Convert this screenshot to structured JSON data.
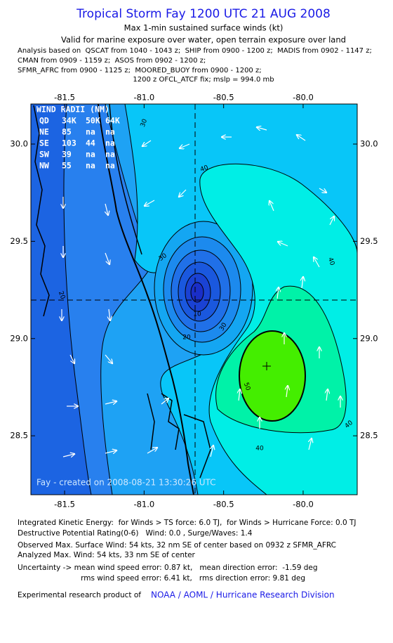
{
  "header": {
    "title": "Tropical Storm Fay 1200 UTC 21 AUG 2008",
    "subtitle": "Max 1-min sustained surface winds (kt)",
    "validity": "Valid for marine exposure over water, open terrain exposure over land",
    "sources": [
      "Analysis based on  QSCAT from 1040 - 1043 z;  SHIP from 0900 - 1200 z;  MADIS from 0902 - 1147 z;",
      "CMAN from 0909 - 1159 z;  ASOS from 0902 - 1200 z;",
      "SFMR_AFRC from 0900 - 1125 z;  MOORED_BUOY from 0900 - 1200 z;"
    ],
    "fix": "1200 z OFCL_ATCF fix; mslp = 994.0 mb"
  },
  "map": {
    "xlim": [
      -81.712,
      -79.66
    ],
    "ylim": [
      28.197,
      30.206
    ],
    "xticks": [
      {
        "value": -81.5,
        "label": "-81.5"
      },
      {
        "value": -81.0,
        "label": "-81.0"
      },
      {
        "value": -80.5,
        "label": "-80.5"
      },
      {
        "value": -80.0,
        "label": "-80.0"
      }
    ],
    "yticks": [
      {
        "value": 28.5,
        "label": "28.5"
      },
      {
        "value": 29.0,
        "label": "29.0"
      },
      {
        "value": 29.5,
        "label": "29.5"
      },
      {
        "value": 30.0,
        "label": "30.0"
      }
    ],
    "wind_radii": {
      "title": "WIND RADII (NM)",
      "header": [
        "QD",
        "34K",
        "50K",
        "64K"
      ],
      "rows": [
        [
          "NE",
          85,
          "na",
          "na"
        ],
        [
          "SE",
          103,
          44,
          "na"
        ],
        [
          "SW",
          39,
          "na",
          "na"
        ],
        [
          "NW",
          55,
          "na",
          "na"
        ]
      ]
    },
    "contour_labels": [
      30,
      40,
      30,
      10,
      20,
      30,
      20,
      40,
      50,
      40,
      40
    ],
    "credit": "Fay - created on 2008-08-21 13:30:26 UTC"
  },
  "footer": {
    "lines": [
      "Integrated Kinetic Energy:  for Winds > TS force: 6.0 TJ,  for Winds > Hurricane Force: 0.0 TJ",
      "Destructive Potential Rating(0-6)   Wind: 0.0 , Surge/Waves: 1.4",
      "Observed Max. Surface Wind: 54 kts, 32 nm SE of center based on 0932 z SFMR_AFRC",
      "Analyzed Max. Wind: 54 kts, 33 nm SE of center",
      "Uncertainty -> mean wind speed error: 0.87 kt,   mean direction error:  -1.59 deg",
      "                           rms wind speed error: 6.41 kt,   rms direction error: 9.81 deg"
    ],
    "product_prefix": "Experimental research product of",
    "product_link": "NOAA / AOML / Hurricane Research Division"
  }
}
